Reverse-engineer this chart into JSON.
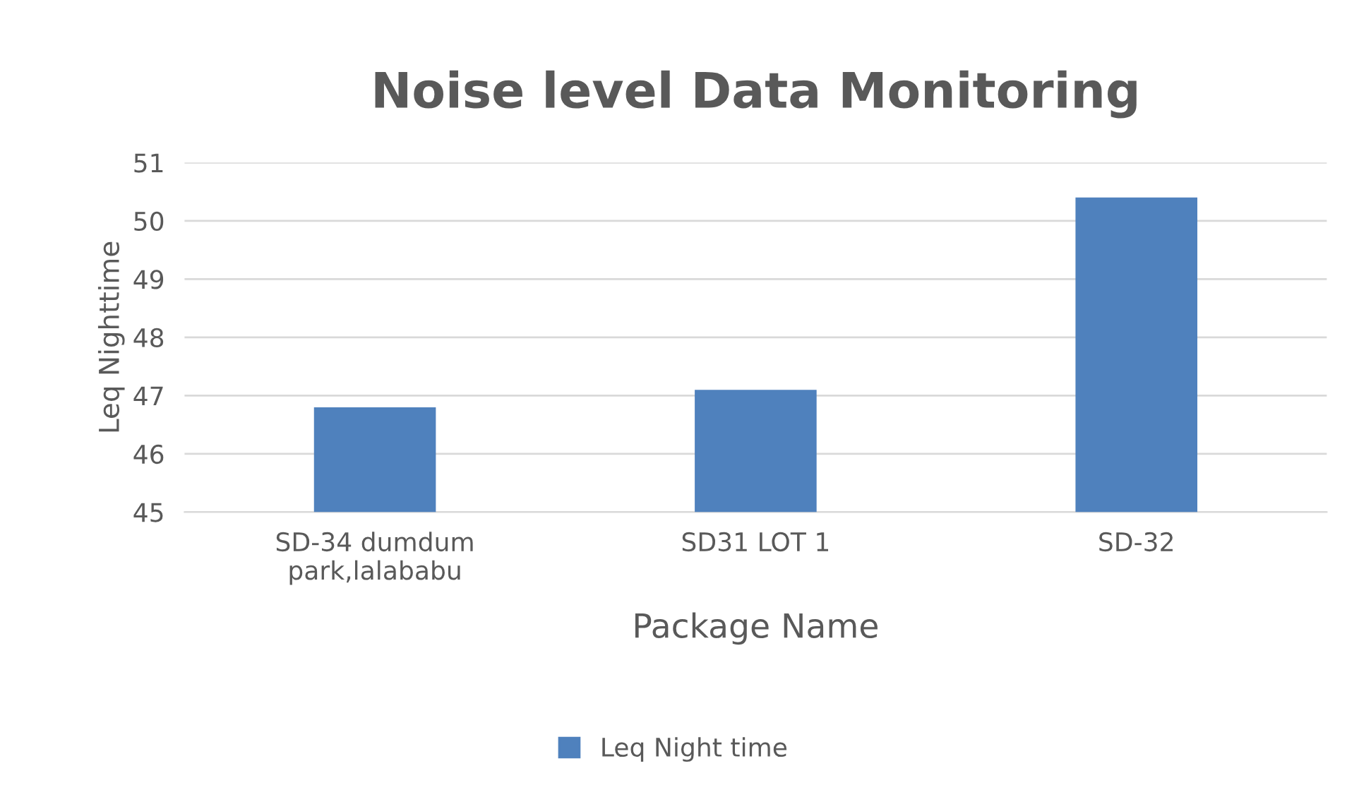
{
  "chart_data": {
    "type": "bar",
    "title": "Noise level Data Monitoring",
    "xlabel": "Package Name",
    "ylabel": "Leq Nighttime",
    "categories": [
      "SD-34 dumdum\npark,lalababu",
      "SD31 LOT 1",
      "SD-32"
    ],
    "series": [
      {
        "name": "Leq Night time",
        "color": "#4f81bd",
        "values": [
          46.8,
          47.1,
          50.4
        ]
      }
    ],
    "ylim": [
      45,
      51
    ],
    "yticks": [
      45,
      46,
      47,
      48,
      49,
      50,
      51
    ],
    "grid": "y",
    "legend": "bottom"
  }
}
